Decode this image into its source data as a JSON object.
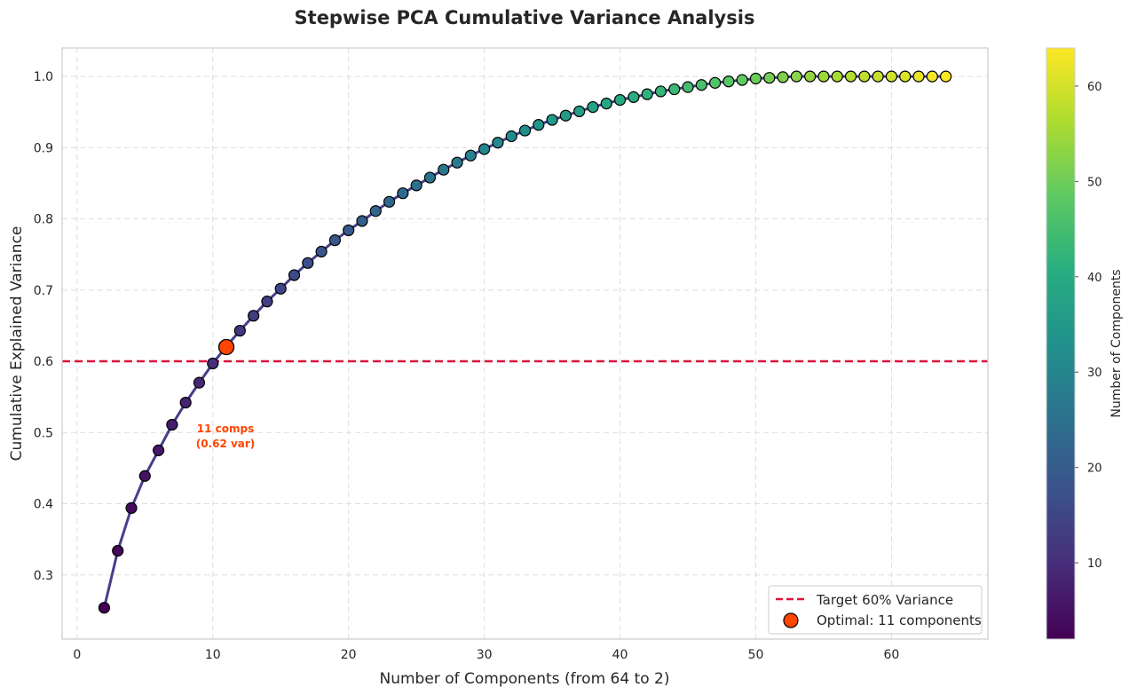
{
  "chart_data": {
    "type": "scatter",
    "title": "Stepwise PCA Cumulative Variance Analysis",
    "xlabel": "Number of Components (from 64 to 2)",
    "ylabel": "Cumulative Explained Variance",
    "xlim": [
      -1.1,
      67.1
    ],
    "ylim": [
      0.21,
      1.04
    ],
    "xticks": [
      0,
      10,
      20,
      30,
      40,
      50,
      60
    ],
    "yticks": [
      0.3,
      0.4,
      0.5,
      0.6,
      0.7,
      0.8,
      0.9,
      1.0
    ],
    "ytick_labels": [
      "0.3",
      "0.4",
      "0.5",
      "0.6",
      "0.7",
      "0.8",
      "0.9",
      "1.0"
    ],
    "grid": true,
    "colormap": "viridis",
    "line_color": "#483d8b",
    "x": [
      2,
      3,
      4,
      5,
      6,
      7,
      8,
      9,
      10,
      11,
      12,
      13,
      14,
      15,
      16,
      17,
      18,
      19,
      20,
      21,
      22,
      23,
      24,
      25,
      26,
      27,
      28,
      29,
      30,
      31,
      32,
      33,
      34,
      35,
      36,
      37,
      38,
      39,
      40,
      41,
      42,
      43,
      44,
      45,
      46,
      47,
      48,
      49,
      50,
      51,
      52,
      53,
      54,
      55,
      56,
      57,
      58,
      59,
      60,
      61,
      62,
      63,
      64
    ],
    "y": [
      0.254,
      0.334,
      0.394,
      0.439,
      0.475,
      0.511,
      0.542,
      0.57,
      0.597,
      0.621,
      0.643,
      0.664,
      0.684,
      0.702,
      0.721,
      0.738,
      0.754,
      0.77,
      0.784,
      0.797,
      0.811,
      0.824,
      0.836,
      0.847,
      0.858,
      0.869,
      0.879,
      0.889,
      0.898,
      0.907,
      0.916,
      0.924,
      0.932,
      0.939,
      0.945,
      0.951,
      0.957,
      0.962,
      0.967,
      0.971,
      0.975,
      0.979,
      0.982,
      0.985,
      0.988,
      0.991,
      0.993,
      0.995,
      0.997,
      0.998,
      0.999,
      1.0,
      1.0,
      1.0,
      1.0,
      1.0,
      1.0,
      1.0,
      1.0,
      1.0,
      1.0,
      1.0,
      1.0
    ],
    "target_line": {
      "y": 0.6,
      "label": "Target 60% Variance",
      "color": "#dc143c"
    },
    "optimal_point": {
      "x": 11,
      "y": 0.62,
      "label": "Optimal: 11 components",
      "color": "#ff4500"
    },
    "annotation": {
      "line1": "11 comps",
      "line2": "(0.62 var)",
      "x": 11,
      "y": 0.497
    },
    "legend_position": "lower-right",
    "colorbar": {
      "label": "Number of Components",
      "range": [
        2,
        64
      ],
      "ticks": [
        10,
        20,
        30,
        40,
        50,
        60
      ]
    }
  }
}
